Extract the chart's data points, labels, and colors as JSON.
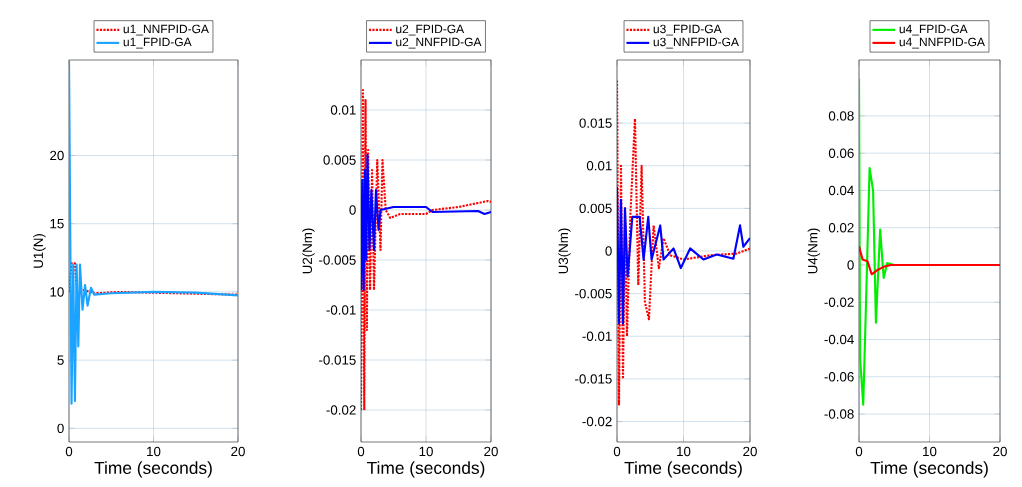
{
  "chart_data": [
    {
      "type": "line",
      "xlabel": "Time (seconds)",
      "ylabel": "U1(N)",
      "xlim": [
        0,
        20
      ],
      "xticks": [
        0,
        10,
        20
      ],
      "ylim": [
        -1,
        27
      ],
      "yticks": [
        0,
        5,
        10,
        15,
        20
      ],
      "grid": true,
      "legend": "top",
      "series": [
        {
          "name": "u1_NNFPID-GA",
          "color": "#ff0000",
          "line_style": "dotted",
          "x": [
            0,
            0.3,
            0.5,
            0.7,
            1,
            1.5,
            3,
            6,
            10,
            20
          ],
          "values": [
            10,
            12.1,
            null,
            12.1,
            9.5,
            10.2,
            9.9,
            10,
            null,
            9.8
          ]
        },
        {
          "name": "u1_FPID-GA",
          "color": "#1aa3ff",
          "line_style": "solid",
          "x": [
            0,
            0.15,
            0.3,
            0.5,
            0.7,
            0.9,
            1.1,
            1.3,
            1.6,
            1.9,
            2.2,
            2.6,
            3,
            5,
            10,
            15,
            20
          ],
          "values": [
            27,
            14,
            1.8,
            12,
            2,
            12,
            6,
            12,
            8.7,
            10.5,
            9,
            10.3,
            9.8,
            9.9,
            10,
            9.95,
            9.75
          ]
        }
      ]
    },
    {
      "type": "line",
      "xlabel": "Time (seconds)",
      "ylabel": "U2(Nm)",
      "xlim": [
        0,
        20
      ],
      "xticks": [
        0,
        10,
        20
      ],
      "ylim": [
        -0.0232,
        0.015
      ],
      "yticks": [
        -0.02,
        -0.015,
        -0.01,
        -0.005,
        0,
        0.005,
        0.01
      ],
      "grid": true,
      "legend": "top",
      "series": [
        {
          "name": "u2_FPID-GA",
          "color": "#ff0000",
          "line_style": "dotted",
          "x": [
            0,
            0.3,
            0.5,
            0.7,
            0.9,
            1.1,
            1.4,
            1.7,
            2,
            2.5,
            3,
            3.3,
            3.8,
            4.5,
            6,
            10,
            11,
            15,
            19.5,
            20
          ],
          "values": [
            -0.02,
            0.012,
            -0.02,
            0.011,
            -0.012,
            0.006,
            -0.008,
            0.004,
            -0.008,
            0.005,
            -0.004,
            0.005,
            0,
            -0.0008,
            -0.0004,
            -0.0004,
            0,
            0.0003,
            0.0009,
            0.0008
          ]
        },
        {
          "name": "u2_NNFPID-GA",
          "color": "#0000ff",
          "line_style": "solid",
          "x": [
            0,
            0.2,
            0.4,
            0.6,
            0.8,
            1,
            1.3,
            1.6,
            2,
            2.3,
            2.7,
            3,
            5,
            10,
            11,
            18,
            19,
            20
          ],
          "values": [
            -0.008,
            0.003,
            -0.008,
            0.004,
            -0.005,
            0.0055,
            -0.004,
            0.002,
            -0.004,
            0.002,
            -0.002,
            0,
            0.0003,
            0.0003,
            -0.0002,
            -0.0001,
            -0.0004,
            -0.0002
          ]
        }
      ]
    },
    {
      "type": "line",
      "xlabel": "Time (seconds)",
      "ylabel": "U3(Nm)",
      "xlim": [
        0,
        20
      ],
      "xticks": [
        0,
        10,
        20
      ],
      "ylim": [
        -0.0224,
        0.0224
      ],
      "yticks": [
        -0.02,
        -0.015,
        -0.01,
        -0.005,
        0,
        0.005,
        0.01,
        0.015
      ],
      "grid": true,
      "legend": "top",
      "series": [
        {
          "name": "u3_FPID-GA",
          "color": "#ff0000",
          "line_style": "dotted",
          "x": [
            0,
            0.3,
            0.6,
            0.9,
            1.2,
            1.5,
            2,
            2.7,
            3.2,
            3.7,
            4.2,
            4.8,
            5.5,
            6.3,
            7,
            8,
            10,
            14,
            18,
            20
          ],
          "values": [
            0.02,
            -0.018,
            0.01,
            -0.015,
            0.005,
            -0.01,
            0.004,
            0.0155,
            -0.004,
            0.01,
            -0.006,
            -0.008,
            0.003,
            -0.002,
            0.0015,
            -0.0005,
            -0.001,
            -0.0005,
            -0.0003,
            0.0003
          ]
        },
        {
          "name": "u3_NNFPID-GA",
          "color": "#0000ff",
          "line_style": "solid",
          "x": [
            0,
            0.3,
            0.6,
            0.9,
            1.2,
            1.6,
            2.3,
            3.4,
            4,
            4.7,
            5.2,
            6.5,
            7,
            8.5,
            9.6,
            11,
            13,
            15,
            17.5,
            18.5,
            19,
            20
          ],
          "values": [
            0.0075,
            -0.0085,
            0.006,
            -0.0085,
            0.005,
            -0.003,
            0.004,
            0.004,
            -0.001,
            0.004,
            -0.001,
            0.003,
            -0.001,
            0.0003,
            -0.002,
            0.0003,
            -0.001,
            -0.0004,
            -0.0009,
            0.003,
            0.0005,
            0.0015
          ]
        }
      ]
    },
    {
      "type": "line",
      "xlabel": "Time (seconds)",
      "ylabel": "U4(Nm)",
      "xlim": [
        0,
        20
      ],
      "xticks": [
        0,
        10,
        20
      ],
      "ylim": [
        -0.095,
        0.11
      ],
      "yticks": [
        -0.08,
        -0.06,
        -0.04,
        -0.02,
        0,
        0.02,
        0.04,
        0.06,
        0.08
      ],
      "grid": true,
      "legend": "top",
      "series": [
        {
          "name": "u4_FPID-GA",
          "color": "#00ee00",
          "line_style": "solid",
          "x": [
            0,
            0.15,
            0.6,
            1,
            1.5,
            2,
            2.4,
            3,
            3.5,
            4,
            5,
            20
          ],
          "values": [
            0.1,
            -0.05,
            -0.075,
            -0.02,
            0.052,
            0.04,
            -0.031,
            0.019,
            -0.007,
            0.001,
            0,
            0
          ]
        },
        {
          "name": "u4_NNFPID-GA",
          "color": "#ff0000",
          "line_style": "solid",
          "x": [
            0,
            0.5,
            1.2,
            1.8,
            2.5,
            3.5,
            4.5,
            20
          ],
          "values": [
            0.01,
            0.003,
            0.002,
            -0.005,
            -0.003,
            -0.001,
            0,
            0
          ]
        }
      ]
    }
  ]
}
